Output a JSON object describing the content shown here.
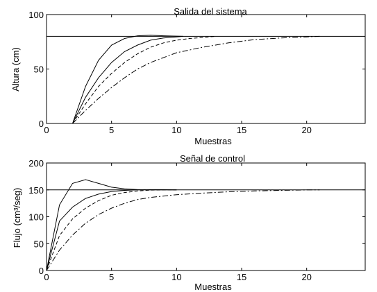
{
  "chart_data": [
    {
      "type": "line",
      "title": "Salida del sistema",
      "xlabel": "Muestras",
      "ylabel": "Altura (cm)",
      "xlim": [
        0,
        24.5
      ],
      "ylim": [
        0,
        100
      ],
      "xticks": [
        "0",
        "5",
        "10",
        "15",
        "20"
      ],
      "yticks": [
        "0",
        "50",
        "100"
      ],
      "reference": {
        "y": 80
      },
      "series": [
        {
          "style": "solid",
          "x": [
            2,
            3,
            4,
            5,
            6,
            7,
            8,
            9,
            10,
            10.5
          ],
          "values": [
            0,
            34,
            58,
            72,
            78,
            80.5,
            81,
            80.5,
            80.2,
            80
          ]
        },
        {
          "style": "solid",
          "x": [
            2,
            3,
            4,
            5,
            6,
            7,
            8,
            9,
            10,
            10.5
          ],
          "values": [
            0,
            24,
            42,
            56,
            66,
            72,
            76.5,
            78.5,
            79.5,
            80
          ]
        },
        {
          "style": "dashed",
          "x": [
            2,
            3,
            4,
            5,
            6,
            7,
            8,
            9,
            10,
            11,
            12,
            13
          ],
          "values": [
            0,
            18,
            34,
            46,
            56,
            64,
            70,
            74,
            76.5,
            78,
            79,
            80
          ]
        },
        {
          "style": "dashdot",
          "x": [
            2,
            3,
            4,
            5,
            6,
            7,
            8,
            10,
            12,
            14,
            16,
            18,
            20,
            21
          ],
          "values": [
            0,
            12,
            23,
            33,
            42,
            50,
            56,
            65,
            70,
            74,
            77,
            78.5,
            79.5,
            80
          ]
        }
      ]
    },
    {
      "type": "line",
      "title": "Señal de control",
      "xlabel": "Muestras",
      "ylabel": "Flujo (cm³/seg)",
      "xlim": [
        0,
        24.5
      ],
      "ylim": [
        0,
        200
      ],
      "xticks": [
        "0",
        "5",
        "10",
        "15",
        "20"
      ],
      "yticks": [
        "0",
        "50",
        "100",
        "150",
        "200"
      ],
      "reference": {
        "y": 150
      },
      "series": [
        {
          "style": "solid",
          "x": [
            0,
            1,
            2,
            3,
            4,
            5,
            6,
            7,
            8,
            10
          ],
          "values": [
            0,
            122,
            162,
            169,
            162,
            155,
            152,
            150.5,
            150,
            150
          ]
        },
        {
          "style": "solid",
          "x": [
            0,
            1,
            2,
            3,
            4,
            5,
            6,
            7,
            8,
            9,
            10
          ],
          "values": [
            0,
            92,
            118,
            134,
            142,
            147,
            149,
            150,
            150.5,
            150.5,
            150
          ]
        },
        {
          "style": "dashed",
          "x": [
            0,
            1,
            2,
            3,
            4,
            5,
            6,
            7,
            8,
            9,
            10
          ],
          "values": [
            0,
            65,
            96,
            116,
            130,
            140,
            145,
            148,
            149.5,
            150,
            150
          ]
        },
        {
          "style": "dashdot",
          "x": [
            0,
            1,
            2,
            3,
            4,
            5,
            6,
            7,
            8,
            10,
            12,
            14,
            16,
            18,
            20,
            21
          ],
          "values": [
            0,
            38,
            66,
            88,
            104,
            116,
            125,
            132,
            136,
            141,
            144,
            146.5,
            148,
            149,
            150,
            150
          ]
        }
      ]
    }
  ]
}
